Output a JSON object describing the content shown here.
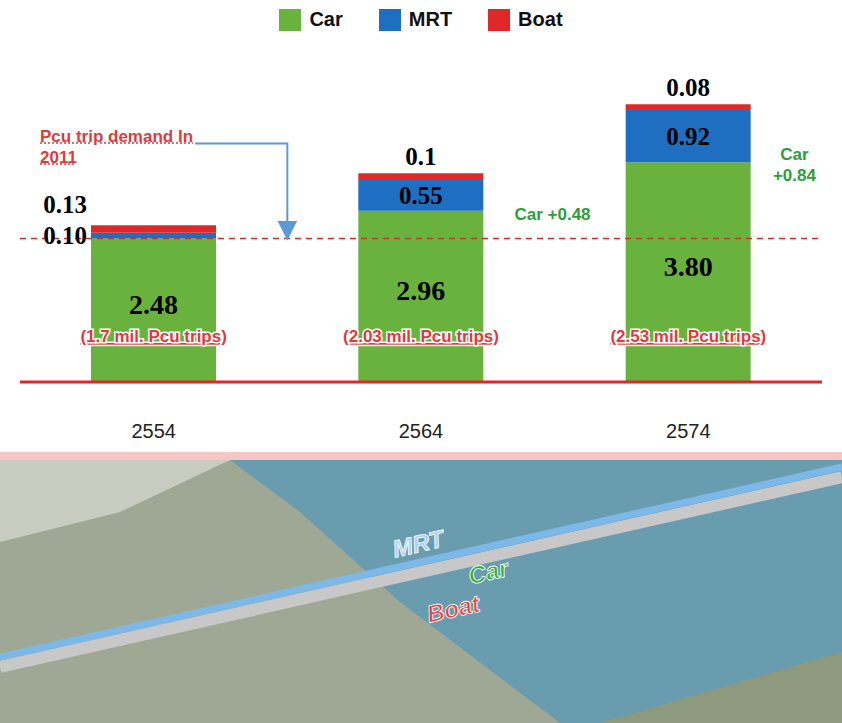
{
  "chart_data": {
    "type": "bar",
    "stacked": true,
    "data_labels": true,
    "legend": "top",
    "tick_labels": "x",
    "categories": [
      "2554",
      "2564",
      "2574"
    ],
    "series": [
      {
        "name": "Car",
        "color": "#6ab23e",
        "values": [
          2.48,
          2.96,
          3.8
        ],
        "value_labels": [
          "2.48",
          "2.96",
          "3.80"
        ]
      },
      {
        "name": "MRT",
        "color": "#1e6fc1",
        "values": [
          0.1,
          0.55,
          0.92
        ],
        "value_labels": [
          "0.10",
          "0.55",
          "0.92"
        ]
      },
      {
        "name": "Boat",
        "color": "#e02828",
        "values": [
          0.13,
          0.1,
          0.08
        ]
      }
    ],
    "ylim": [
      0,
      5.6
    ],
    "yticks": [
      0,
      5.6
    ],
    "reference_line": {
      "value": 2.48,
      "label": "Pcu trip demand In 2011"
    },
    "annotations": [
      {
        "text": "Car +0.48",
        "category": "2564"
      },
      {
        "text": "Car +0.84",
        "category": "2574"
      }
    ],
    "category_notes": [
      "(1.7 mil. Pcu trips)",
      "(2.03 mil. Pcu trips)",
      "(2.53 mil. Pcu trips)"
    ],
    "illustration": {
      "labels": [
        "MRT",
        "Car",
        "Boat"
      ]
    }
  }
}
